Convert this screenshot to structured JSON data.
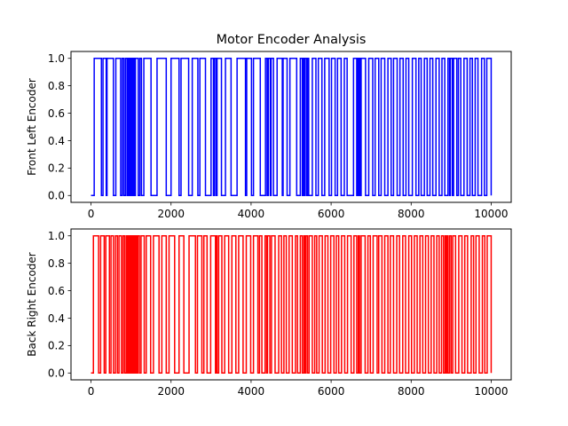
{
  "chart_data": [
    {
      "type": "line",
      "title": "Motor Encoder Analysis",
      "xlabel": "",
      "ylabel": "Front Left Encoder",
      "xlim": [
        -500,
        10500
      ],
      "ylim": [
        -0.05,
        1.05
      ],
      "xticks": [
        0,
        2000,
        4000,
        6000,
        8000,
        10000
      ],
      "xtick_labels": [
        "0",
        "2000",
        "4000",
        "6000",
        "8000",
        "10000"
      ],
      "yticks": [
        0.0,
        0.2,
        0.4,
        0.6,
        0.8,
        1.0
      ],
      "ytick_labels": [
        "0.0",
        "0.2",
        "0.4",
        "0.6",
        "0.8",
        "1.0"
      ],
      "grid": false,
      "series": [
        {
          "color": "#0000ff",
          "style": "step",
          "x_start": 0,
          "x_end": 10000,
          "initial_value": 0,
          "high_intervals": [
            [
              80,
              260
            ],
            [
              300,
              380
            ],
            [
              400,
              560
            ],
            [
              620,
              740
            ],
            [
              780,
              820
            ],
            [
              860,
              900
            ],
            [
              920,
              940
            ],
            [
              960,
              990
            ],
            [
              1010,
              1040
            ],
            [
              1060,
              1090
            ],
            [
              1110,
              1180
            ],
            [
              1220,
              1260
            ],
            [
              1320,
              1500
            ],
            [
              1650,
              1880
            ],
            [
              2000,
              2200
            ],
            [
              2250,
              2440
            ],
            [
              2530,
              2670
            ],
            [
              2720,
              2860
            ],
            [
              3000,
              3060
            ],
            [
              3090,
              3130
            ],
            [
              3150,
              3260
            ],
            [
              3360,
              3500
            ],
            [
              3650,
              3860
            ],
            [
              3890,
              4010
            ],
            [
              4060,
              4230
            ],
            [
              4360,
              4400
            ],
            [
              4430,
              4480
            ],
            [
              4500,
              4560
            ],
            [
              4650,
              4780
            ],
            [
              4800,
              4900
            ],
            [
              4970,
              5140
            ],
            [
              5230,
              5280
            ],
            [
              5300,
              5330
            ],
            [
              5350,
              5390
            ],
            [
              5420,
              5440
            ],
            [
              5530,
              5620
            ],
            [
              5680,
              5770
            ],
            [
              5840,
              5950
            ],
            [
              6010,
              6100
            ],
            [
              6160,
              6250
            ],
            [
              6330,
              6400
            ],
            [
              6560,
              6640
            ],
            [
              6660,
              6680
            ],
            [
              6700,
              6720
            ],
            [
              6750,
              6860
            ],
            [
              6940,
              7040
            ],
            [
              7100,
              7190
            ],
            [
              7250,
              7340
            ],
            [
              7420,
              7500
            ],
            [
              7560,
              7650
            ],
            [
              7720,
              7800
            ],
            [
              7870,
              7940
            ],
            [
              8030,
              8120
            ],
            [
              8190,
              8250
            ],
            [
              8330,
              8400
            ],
            [
              8470,
              8540
            ],
            [
              8620,
              8700
            ],
            [
              8770,
              8840
            ],
            [
              8920,
              8960
            ],
            [
              8980,
              9030
            ],
            [
              9060,
              9140
            ],
            [
              9180,
              9240
            ],
            [
              9320,
              9400
            ],
            [
              9470,
              9530
            ],
            [
              9600,
              9670
            ],
            [
              9760,
              9830
            ],
            [
              9890,
              10000
            ]
          ]
        }
      ]
    },
    {
      "type": "line",
      "title": "",
      "xlabel": "",
      "ylabel": "Back Right Encoder",
      "xlim": [
        -500,
        10500
      ],
      "ylim": [
        -0.05,
        1.05
      ],
      "xticks": [
        0,
        2000,
        4000,
        6000,
        8000,
        10000
      ],
      "xtick_labels": [
        "0",
        "2000",
        "4000",
        "6000",
        "8000",
        "10000"
      ],
      "yticks": [
        0.0,
        0.2,
        0.4,
        0.6,
        0.8,
        1.0
      ],
      "ytick_labels": [
        "0.0",
        "0.2",
        "0.4",
        "0.6",
        "0.8",
        "1.0"
      ],
      "grid": false,
      "series": [
        {
          "color": "#ff0000",
          "style": "step",
          "x_start": 0,
          "x_end": 10000,
          "initial_value": 0,
          "high_intervals": [
            [
              60,
              190
            ],
            [
              240,
              330
            ],
            [
              370,
              460
            ],
            [
              500,
              560
            ],
            [
              610,
              660
            ],
            [
              700,
              760
            ],
            [
              800,
              840
            ],
            [
              880,
              910
            ],
            [
              930,
              950
            ],
            [
              970,
              990
            ],
            [
              1010,
              1040
            ],
            [
              1060,
              1090
            ],
            [
              1110,
              1140
            ],
            [
              1170,
              1210
            ],
            [
              1250,
              1330
            ],
            [
              1380,
              1490
            ],
            [
              1560,
              1700
            ],
            [
              1770,
              1880
            ],
            [
              1950,
              2090
            ],
            [
              2200,
              2320
            ],
            [
              2450,
              2610
            ],
            [
              2660,
              2770
            ],
            [
              2820,
              2900
            ],
            [
              2990,
              3110
            ],
            [
              3140,
              3150
            ],
            [
              3190,
              3270
            ],
            [
              3340,
              3440
            ],
            [
              3520,
              3620
            ],
            [
              3690,
              3800
            ],
            [
              3880,
              3990
            ],
            [
              4060,
              4170
            ],
            [
              4210,
              4270
            ],
            [
              4350,
              4390
            ],
            [
              4410,
              4470
            ],
            [
              4510,
              4600
            ],
            [
              4690,
              4760
            ],
            [
              4820,
              4880
            ],
            [
              4950,
              5030
            ],
            [
              5110,
              5160
            ],
            [
              5230,
              5280
            ],
            [
              5320,
              5350
            ],
            [
              5370,
              5410
            ],
            [
              5450,
              5530
            ],
            [
              5590,
              5640
            ],
            [
              5700,
              5780
            ],
            [
              5850,
              5920
            ],
            [
              5990,
              6070
            ],
            [
              6130,
              6190
            ],
            [
              6260,
              6340
            ],
            [
              6410,
              6500
            ],
            [
              6570,
              6640
            ],
            [
              6680,
              6710
            ],
            [
              6750,
              6850
            ],
            [
              6920,
              6980
            ],
            [
              7050,
              7150
            ],
            [
              7190,
              7270
            ],
            [
              7340,
              7420
            ],
            [
              7480,
              7560
            ],
            [
              7640,
              7710
            ],
            [
              7790,
              7860
            ],
            [
              7940,
              8010
            ],
            [
              8080,
              8150
            ],
            [
              8220,
              8290
            ],
            [
              8360,
              8430
            ],
            [
              8500,
              8570
            ],
            [
              8640,
              8700
            ],
            [
              8760,
              8810
            ],
            [
              8850,
              8880
            ],
            [
              8900,
              8920
            ],
            [
              8960,
              9000
            ],
            [
              9040,
              9110
            ],
            [
              9190,
              9270
            ],
            [
              9340,
              9410
            ],
            [
              9500,
              9560
            ],
            [
              9620,
              9700
            ],
            [
              9780,
              9840
            ],
            [
              9900,
              10000
            ]
          ]
        }
      ]
    }
  ]
}
